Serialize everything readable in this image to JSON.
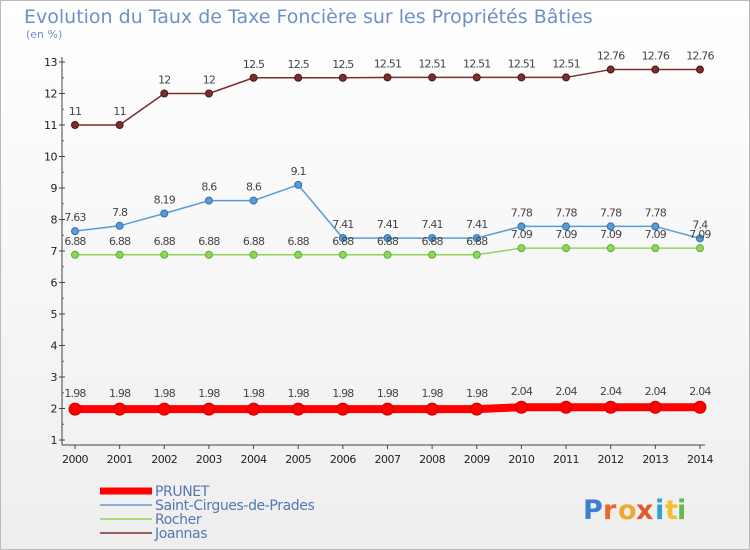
{
  "chart_data": {
    "type": "line",
    "title": "Evolution du Taux de Taxe Foncière sur les Propriétés Bâties",
    "subtitle": "(en %)",
    "x": [
      "2000",
      "2001",
      "2002",
      "2003",
      "2004",
      "2005",
      "2006",
      "2007",
      "2008",
      "2009",
      "2010",
      "2011",
      "2012",
      "2013",
      "2014"
    ],
    "ylim": [
      1,
      13
    ],
    "yticks": [
      "1",
      "2",
      "3",
      "4",
      "5",
      "6",
      "7",
      "8",
      "9",
      "10",
      "11",
      "12",
      "13"
    ],
    "grid": false,
    "legend_position": "bottom-left",
    "series": [
      {
        "name": "PRUNET",
        "color": "#ff0000",
        "values": [
          1.98,
          1.98,
          1.98,
          1.98,
          1.98,
          1.98,
          1.98,
          1.98,
          1.98,
          1.98,
          2.04,
          2.04,
          2.04,
          2.04,
          2.04
        ],
        "labels": [
          "1.98",
          "1.98",
          "1.98",
          "1.98",
          "1.98",
          "1.98",
          "1.98",
          "1.98",
          "1.98",
          "1.98",
          "2.04",
          "2.04",
          "2.04",
          "2.04",
          "2.04"
        ]
      },
      {
        "name": "Saint-Cirgues-de-Prades",
        "color": "#5b9bd5",
        "values": [
          7.63,
          7.8,
          8.19,
          8.6,
          8.6,
          9.1,
          7.41,
          7.41,
          7.41,
          7.41,
          7.78,
          7.78,
          7.78,
          7.78,
          7.4
        ],
        "labels": [
          "7.63",
          "7.8",
          "8.19",
          "8.6",
          "8.6",
          "9.1",
          "7.41",
          "7.41",
          "7.41",
          "7.41",
          "7.78",
          "7.78",
          "7.78",
          "7.78",
          "7.4"
        ]
      },
      {
        "name": "Rocher",
        "color": "#8ed65a",
        "values": [
          6.88,
          6.88,
          6.88,
          6.88,
          6.88,
          6.88,
          6.88,
          6.88,
          6.88,
          6.88,
          7.09,
          7.09,
          7.09,
          7.09,
          7.09
        ],
        "labels": [
          "6.88",
          "6.88",
          "6.88",
          "6.88",
          "6.88",
          "6.88",
          "6.88",
          "6.88",
          "6.88",
          "6.88",
          "7.09",
          "7.09",
          "7.09",
          "7.09",
          "7.09"
        ]
      },
      {
        "name": "Joannas",
        "color": "#7a2e2e",
        "values": [
          11,
          11,
          12,
          12,
          12.5,
          12.5,
          12.5,
          12.51,
          12.51,
          12.51,
          12.51,
          12.51,
          12.76,
          12.76,
          12.76
        ],
        "labels": [
          "11",
          "11",
          "12",
          "12",
          "12.5",
          "12.5",
          "12.5",
          "12.51",
          "12.51",
          "12.51",
          "12.51",
          "12.51",
          "12.76",
          "12.76",
          "12.76"
        ]
      }
    ]
  },
  "logo": {
    "text": "Proxiti",
    "letter_colors": [
      "#3b7fd1",
      "#e9682a",
      "#f0a830",
      "#e05a2b",
      "#2f9fd8",
      "#f0c030",
      "#65b84a"
    ]
  }
}
